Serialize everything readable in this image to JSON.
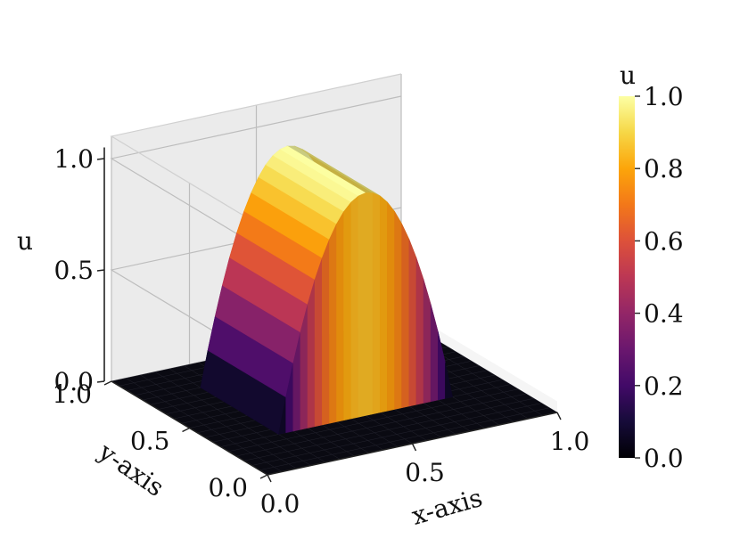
{
  "chart_data": {
    "type": "surface",
    "description_of_data": "u(x,y) = 1 - ((x-0.5)/0.3)^2 for |x-0.5|<0.3 and 0.3<y<0.8, else 0",
    "xlabel": "x-axis",
    "ylabel": "y-axis",
    "zlabel": "u",
    "xlim": [
      0,
      1
    ],
    "ylim": [
      0,
      1
    ],
    "zlim": [
      0,
      1
    ],
    "x_ticks": [
      "0.0",
      "0.5",
      "1.0"
    ],
    "y_ticks": [
      "0.0",
      "0.5",
      "1.0"
    ],
    "z_ticks": [
      "0.0",
      "0.5",
      "1.0"
    ],
    "grid": true,
    "colormap": "inferno",
    "colorbar": {
      "label": "u",
      "range": [
        0,
        1
      ],
      "ticks": [
        "0.0",
        "0.2",
        "0.4",
        "0.6",
        "0.8",
        "1.0"
      ]
    },
    "surface": {
      "x_center": 0.5,
      "half_width": 0.3,
      "y_range": [
        0.3,
        0.8
      ],
      "peak": 1.0,
      "outside_value": 0.0
    },
    "colors": {
      "pane": "#ebebeb",
      "grid": "#bdbdbd",
      "floor": "#0a0a12"
    }
  }
}
